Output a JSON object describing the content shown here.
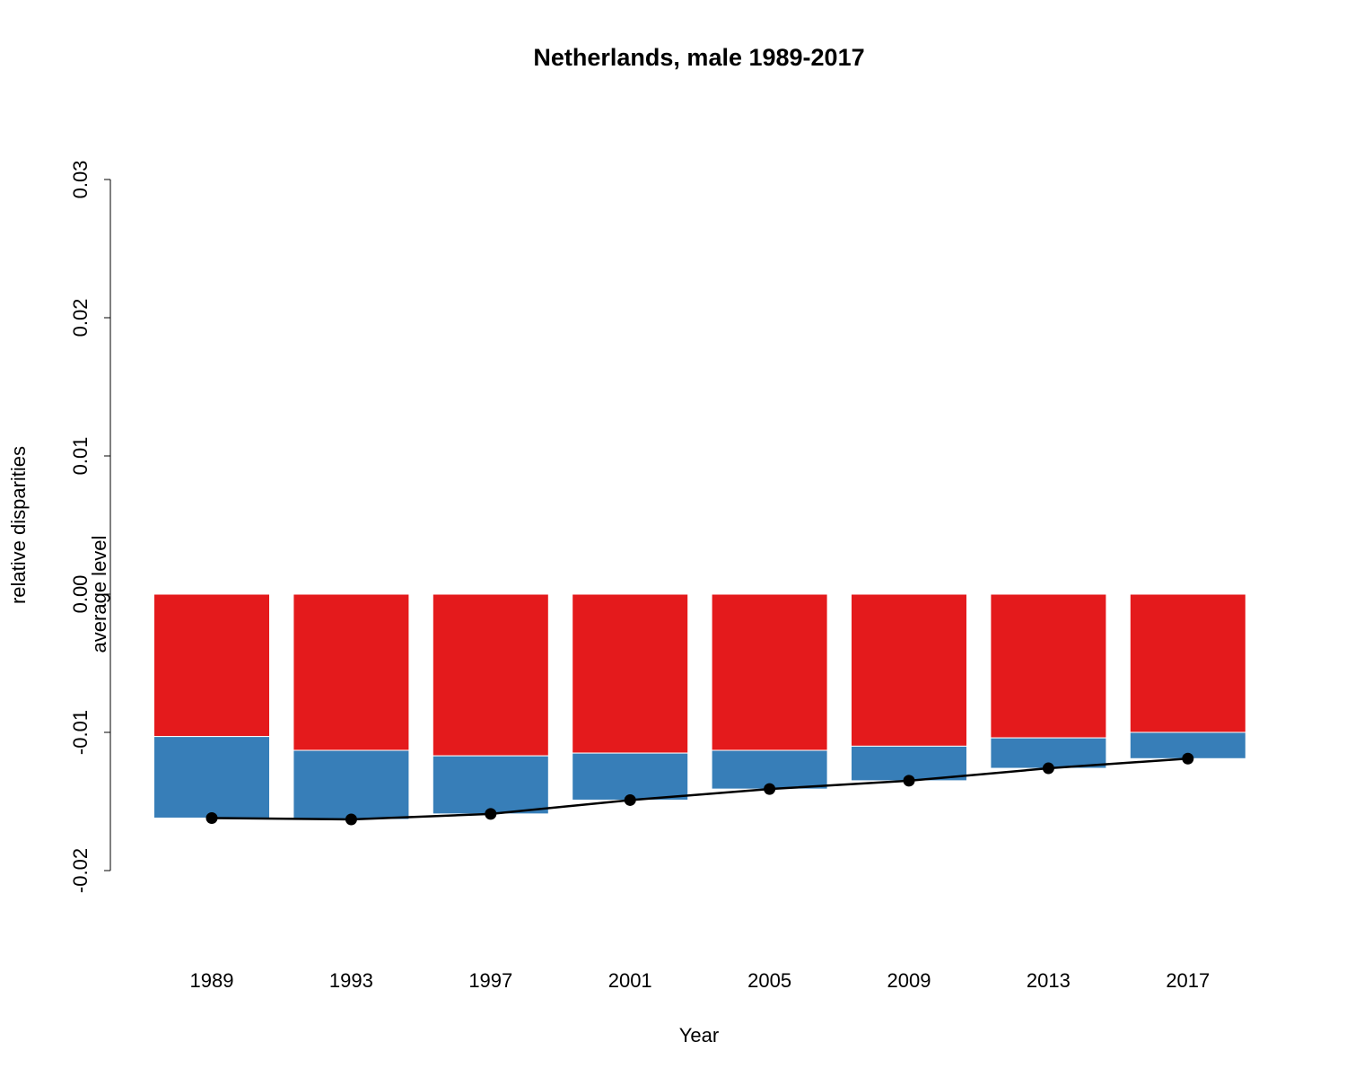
{
  "chart_data": {
    "type": "bar",
    "title": "Netherlands, male 1989-2017",
    "xlabel": "Year",
    "ylabel": "relative disparities",
    "ylabel2": "average level",
    "ylim": [
      -0.02,
      0.03
    ],
    "yticks": [
      "-0.02",
      "-0.01",
      "0.00",
      "0.01",
      "0.02",
      "0.03"
    ],
    "categories": [
      "1989",
      "1993",
      "1997",
      "2001",
      "2005",
      "2009",
      "2013",
      "2017"
    ],
    "stacked": true,
    "grid": false,
    "series": [
      {
        "color": "#E41A1C",
        "values": [
          -0.0103,
          -0.0113,
          -0.0117,
          -0.0115,
          -0.0113,
          -0.011,
          -0.0104,
          -0.01
        ]
      },
      {
        "color": "#377EB8",
        "values": [
          -0.0059,
          -0.005,
          -0.0042,
          -0.0034,
          -0.0028,
          -0.0025,
          -0.0022,
          -0.0019
        ]
      }
    ],
    "line": {
      "color": "#000000",
      "values": [
        -0.0162,
        -0.0163,
        -0.0159,
        -0.0149,
        -0.0141,
        -0.0135,
        -0.0126,
        -0.0119
      ]
    }
  }
}
